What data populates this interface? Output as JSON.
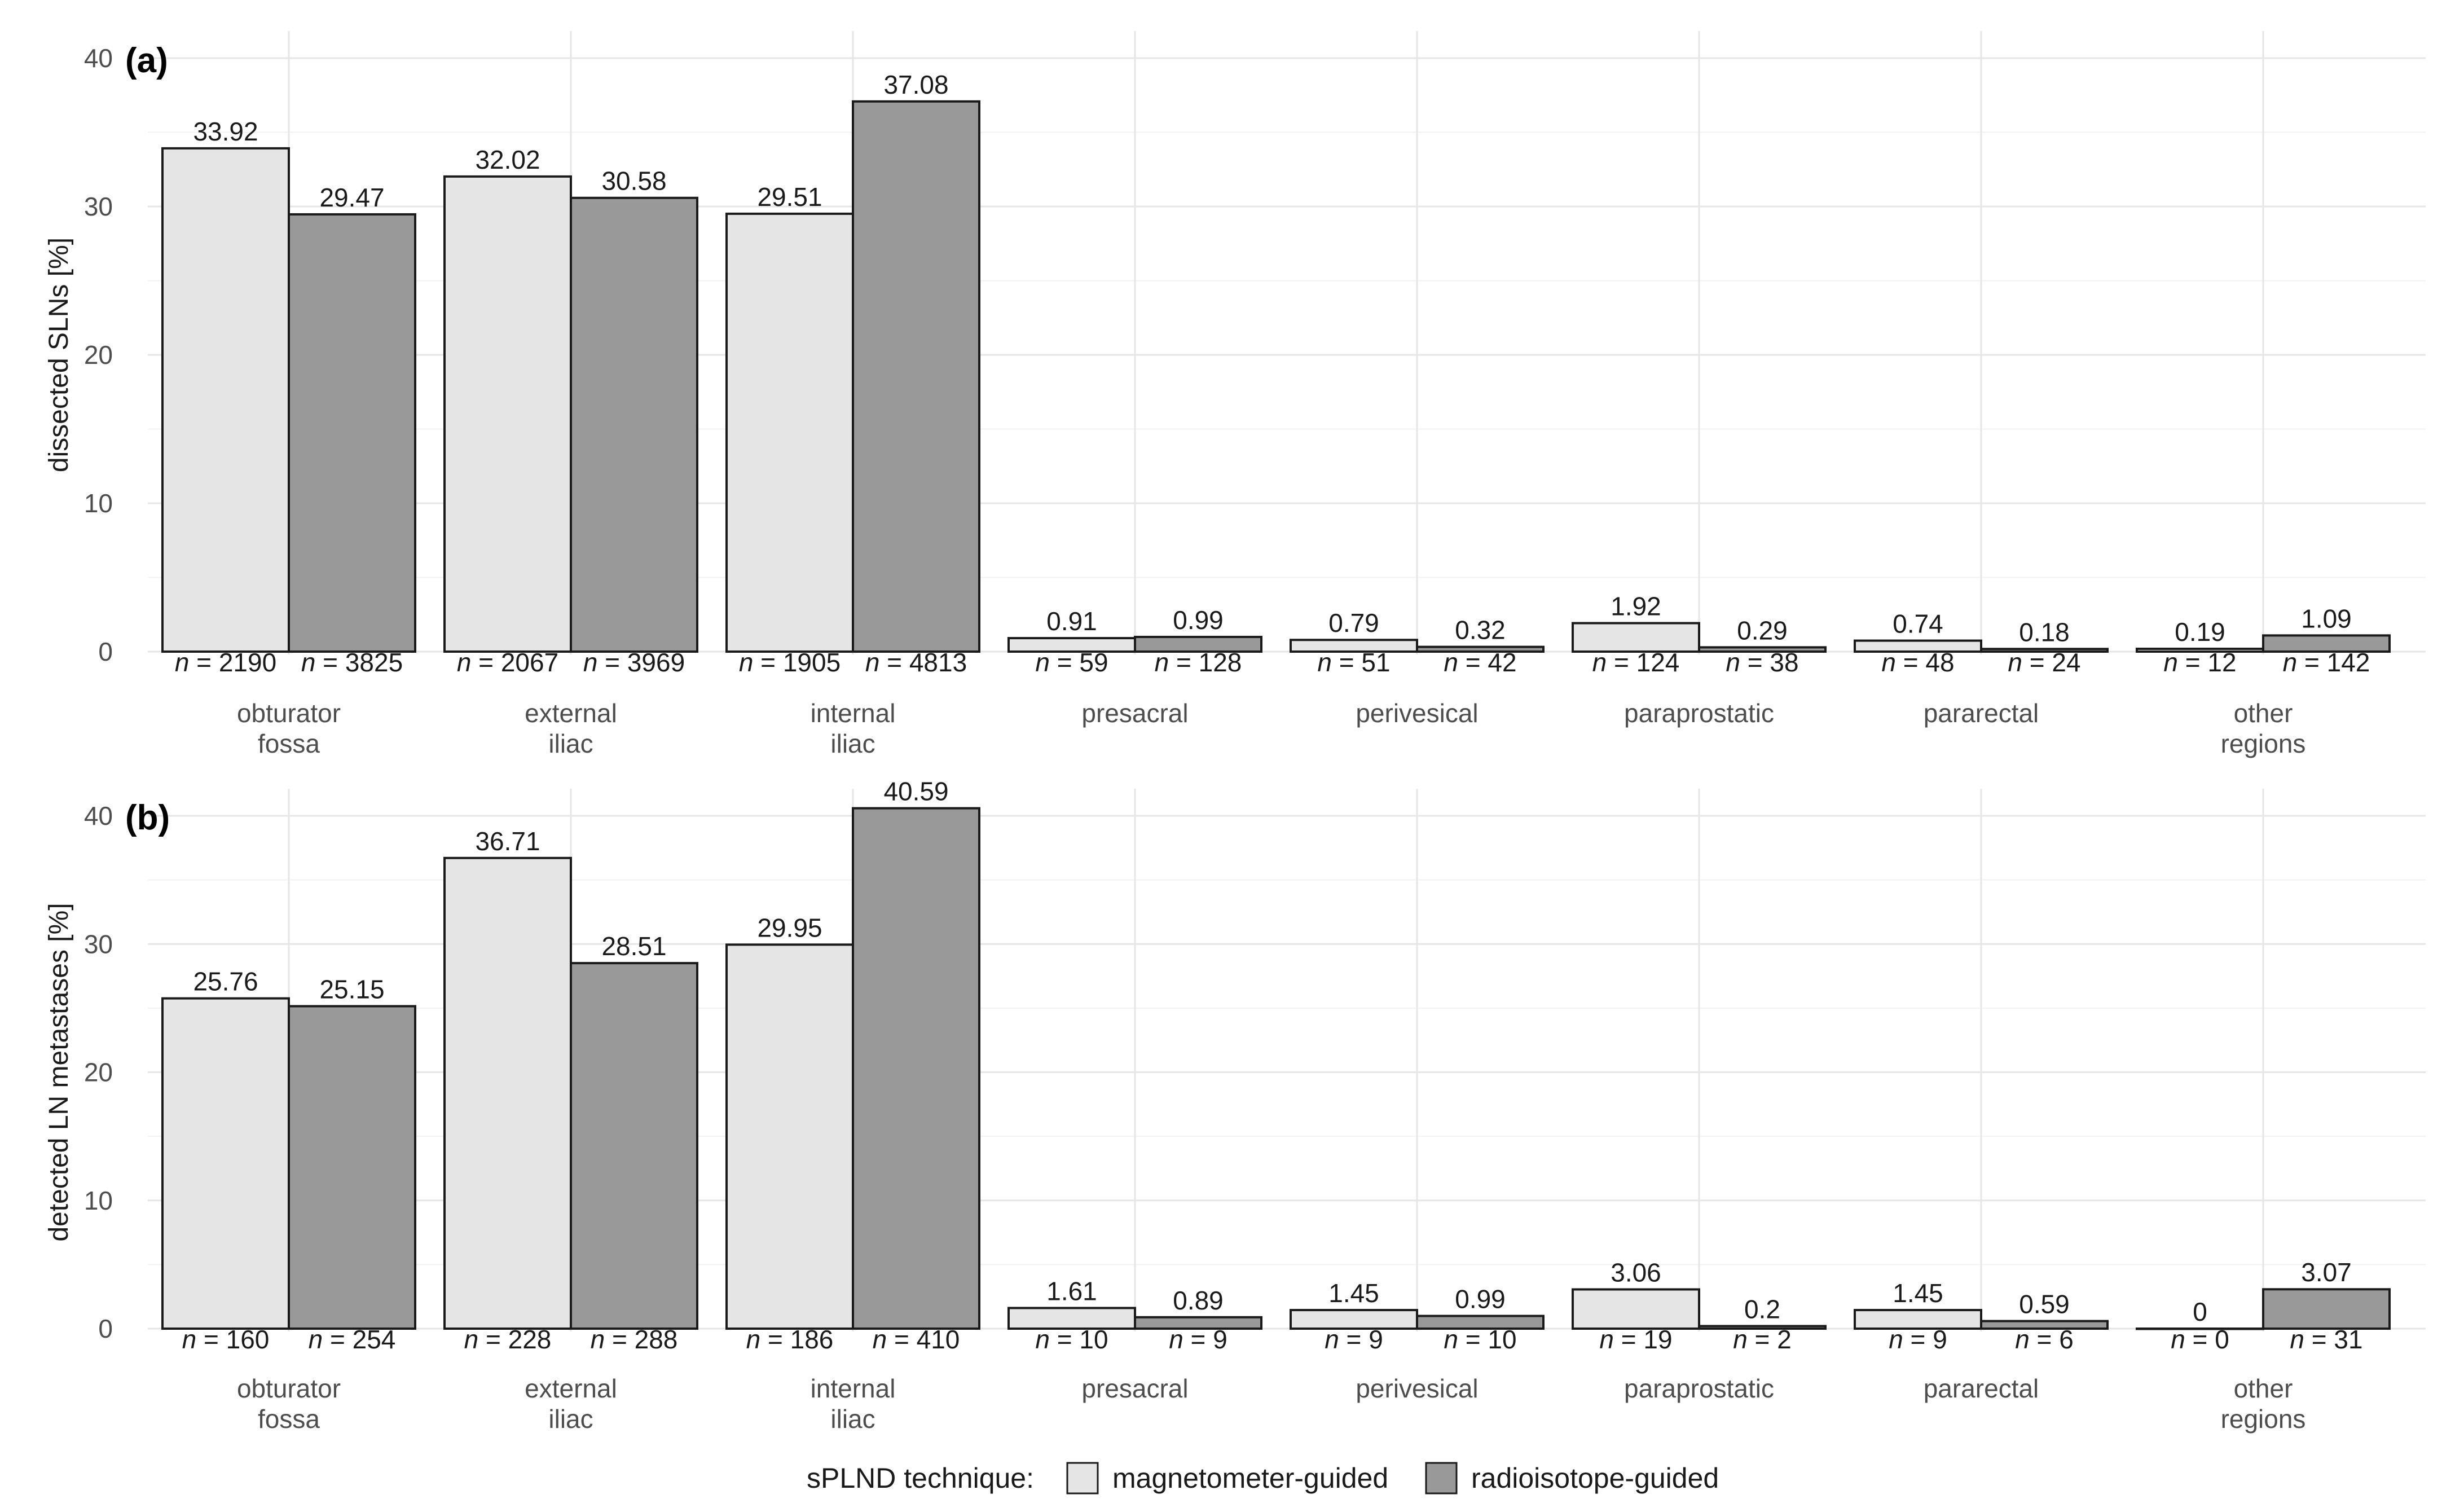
{
  "chart_data": [
    {
      "type": "bar",
      "panel_label": "(a)",
      "ylabel": "dissected SLNs [%]",
      "ylim": [
        0,
        40
      ],
      "yticks": [
        "0",
        "10",
        "20",
        "30",
        "40"
      ],
      "categories": [
        [
          "obturator",
          "fossa"
        ],
        [
          "external",
          "iliac"
        ],
        [
          "internal",
          "iliac"
        ],
        [
          "presacral"
        ],
        [
          "perivesical"
        ],
        [
          "paraprostatic"
        ],
        [
          "pararectal"
        ],
        [
          "other",
          "regions"
        ]
      ],
      "series": [
        {
          "name": "magnetometer-guided",
          "values": [
            33.92,
            32.02,
            29.51,
            0.91,
            0.79,
            1.92,
            0.74,
            0.19
          ],
          "value_labels": [
            "33.92",
            "32.02",
            "29.51",
            "0.91",
            "0.79",
            "1.92",
            "0.74",
            "0.19"
          ],
          "n_labels": [
            "2190",
            "2067",
            "1905",
            "59",
            "51",
            "124",
            "48",
            "12"
          ]
        },
        {
          "name": "radioisotope-guided",
          "values": [
            29.47,
            30.58,
            37.08,
            0.99,
            0.32,
            0.29,
            0.18,
            1.09
          ],
          "value_labels": [
            "29.47",
            "30.58",
            "37.08",
            "0.99",
            "0.32",
            "0.29",
            "0.18",
            "1.09"
          ],
          "n_labels": [
            "3825",
            "3969",
            "4813",
            "128",
            "42",
            "38",
            "24",
            "142"
          ]
        }
      ]
    },
    {
      "type": "bar",
      "panel_label": "(b)",
      "ylabel": "detected LN metastases [%]",
      "ylim": [
        0,
        40
      ],
      "yticks": [
        "0",
        "10",
        "20",
        "30",
        "40"
      ],
      "categories": [
        [
          "obturator",
          "fossa"
        ],
        [
          "external",
          "iliac"
        ],
        [
          "internal",
          "iliac"
        ],
        [
          "presacral"
        ],
        [
          "perivesical"
        ],
        [
          "paraprostatic"
        ],
        [
          "pararectal"
        ],
        [
          "other",
          "regions"
        ]
      ],
      "series": [
        {
          "name": "magnetometer-guided",
          "values": [
            25.76,
            36.71,
            29.95,
            1.61,
            1.45,
            3.06,
            1.45,
            0
          ],
          "value_labels": [
            "25.76",
            "36.71",
            "29.95",
            "1.61",
            "1.45",
            "3.06",
            "1.45",
            "0"
          ],
          "n_labels": [
            "160",
            "228",
            "186",
            "10",
            "9",
            "19",
            "9",
            "0"
          ]
        },
        {
          "name": "radioisotope-guided",
          "values": [
            25.15,
            28.51,
            40.59,
            0.89,
            0.99,
            0.2,
            0.59,
            3.07
          ],
          "value_labels": [
            "25.15",
            "28.51",
            "40.59",
            "0.89",
            "0.99",
            "0.2",
            "0.59",
            "3.07"
          ],
          "n_labels": [
            "254",
            "288",
            "410",
            "9",
            "10",
            "2",
            "6",
            "31"
          ]
        }
      ]
    }
  ],
  "legend": {
    "title": "sPLND technique:",
    "items": [
      {
        "label": "magnetometer-guided",
        "color": "#e5e5e5"
      },
      {
        "label": "radioisotope-guided",
        "color": "#999999"
      }
    ]
  },
  "n_prefix": "n",
  "n_equals": " = ",
  "colors": {
    "magnetometer": "#e5e5e5",
    "radioisotope": "#999999",
    "outline": "#1a1a1a"
  }
}
